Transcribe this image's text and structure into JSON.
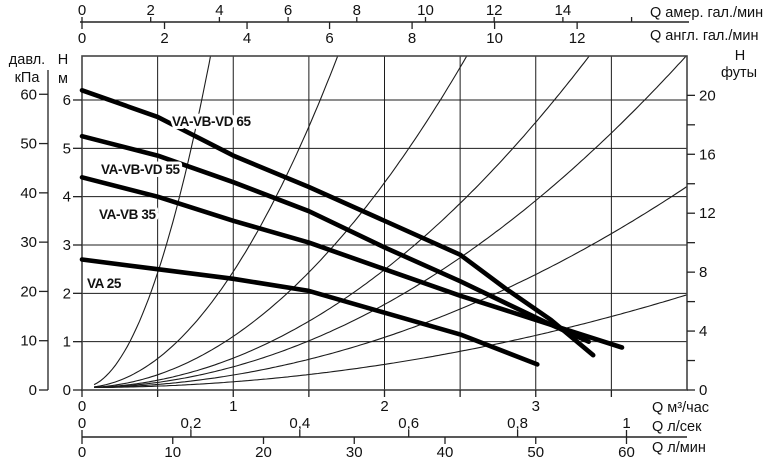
{
  "chart_data": {
    "type": "line",
    "title": "",
    "description": "Pump performance curves (head vs flow) for VA/VB/VD circulator pumps with system resistance curves",
    "axes": {
      "us_gpm": {
        "title": "Q  амер. гал./мин",
        "side": "top-outer",
        "tick_values": [
          0,
          2,
          4,
          6,
          8,
          10,
          12,
          14,
          16
        ],
        "tick_labels": [
          "0",
          "2",
          "4",
          "6",
          "8",
          "10",
          "12",
          "14",
          ""
        ],
        "to_m3h": 0.2271
      },
      "imp_gpm": {
        "title": "Q  англ. гал./мин",
        "side": "top-inner",
        "tick_values": [
          0,
          2,
          4,
          6,
          8,
          10,
          12
        ],
        "tick_labels": [
          "0",
          "2",
          "4",
          "6",
          "8",
          "10",
          "12"
        ],
        "to_m3h": 0.2728
      },
      "m3h": {
        "title": "Q  м³/час",
        "side": "bottom-inner",
        "tick_values": [
          0,
          0.5,
          1,
          1.5,
          2,
          2.5,
          3,
          3.5
        ],
        "tick_labels": [
          "0",
          "",
          "1",
          "",
          "2",
          "",
          "3",
          ""
        ],
        "range": [
          0,
          4
        ]
      },
      "ls": {
        "title": "Q  л/сек",
        "side": "bottom-middle",
        "tick_values": [
          0,
          0.2,
          0.4,
          0.6,
          0.8,
          1
        ],
        "tick_labels": [
          "0",
          "0,2",
          "0,4",
          "0,6",
          "0,8",
          "1"
        ],
        "to_m3h": 3.6
      },
      "lmin": {
        "title": "Q  л/мин",
        "side": "bottom-outer",
        "tick_values": [
          0,
          10,
          20,
          30,
          40,
          50,
          60
        ],
        "tick_labels": [
          "0",
          "10",
          "20",
          "30",
          "40",
          "50",
          "60"
        ],
        "to_m3h": 0.06
      },
      "kpa": {
        "title_line1": "давл.",
        "title_line2": "кПа",
        "side": "left-outer",
        "tick_values": [
          0,
          10,
          20,
          30,
          40,
          50,
          60
        ],
        "tick_labels": [
          "0",
          "10",
          "20",
          "30",
          "40",
          "50",
          "60"
        ],
        "to_m": 0.10197
      },
      "head_m": {
        "title_line1": "H",
        "title_line2": "м",
        "side": "left-inner",
        "tick_values": [
          0,
          1,
          2,
          3,
          4,
          5,
          6
        ],
        "tick_labels": [
          "0",
          "1",
          "2",
          "3",
          "4",
          "5",
          "6"
        ],
        "range": [
          0,
          6.91
        ]
      },
      "ft": {
        "title_line1": "H",
        "title_line2": "футы",
        "side": "right",
        "tick_values": [
          0,
          2,
          4,
          6,
          8,
          10,
          12,
          14,
          16,
          18,
          20
        ],
        "tick_labels": [
          "0",
          "",
          "4",
          "",
          "8",
          "",
          "12",
          "",
          "16",
          "",
          "20"
        ],
        "to_m": 0.3048
      }
    },
    "grid": {
      "x_step_m3h": 0.5,
      "y_step_m": 1,
      "shown": true
    },
    "series": [
      {
        "name": "VA-VB-VD 65",
        "points": [
          [
            0,
            6.2
          ],
          [
            0.5,
            5.65
          ],
          [
            1.0,
            4.85
          ],
          [
            1.5,
            4.2
          ],
          [
            2.0,
            3.5
          ],
          [
            2.5,
            2.8
          ],
          [
            2.8,
            2.1
          ],
          [
            3.1,
            1.45
          ],
          [
            3.38,
            0.72
          ]
        ]
      },
      {
        "name": "VA-VB-VD 55",
        "points": [
          [
            0,
            5.25
          ],
          [
            0.5,
            4.85
          ],
          [
            1.0,
            4.3
          ],
          [
            1.5,
            3.7
          ],
          [
            2.0,
            2.95
          ],
          [
            2.5,
            2.25
          ],
          [
            2.8,
            1.8
          ],
          [
            3.1,
            1.35
          ],
          [
            3.35,
            1.0
          ]
        ]
      },
      {
        "name": "VA-VB 35",
        "points": [
          [
            0,
            4.4
          ],
          [
            0.5,
            4.0
          ],
          [
            1.0,
            3.5
          ],
          [
            1.5,
            3.05
          ],
          [
            2.0,
            2.5
          ],
          [
            2.5,
            1.95
          ],
          [
            3.0,
            1.45
          ],
          [
            3.57,
            0.88
          ]
        ]
      },
      {
        "name": "VA 25",
        "points": [
          [
            0,
            2.7
          ],
          [
            0.5,
            2.5
          ],
          [
            1.0,
            2.3
          ],
          [
            1.5,
            2.05
          ],
          [
            2.0,
            1.6
          ],
          [
            2.5,
            1.15
          ],
          [
            3.01,
            0.53
          ]
        ]
      }
    ],
    "system_curves": {
      "model": "H_m = 0.05 + k * Q_m3h^2",
      "coefficients": [
        9.5,
        2.4,
        1.06,
        0.61,
        0.43,
        0.26,
        0.12
      ]
    }
  }
}
